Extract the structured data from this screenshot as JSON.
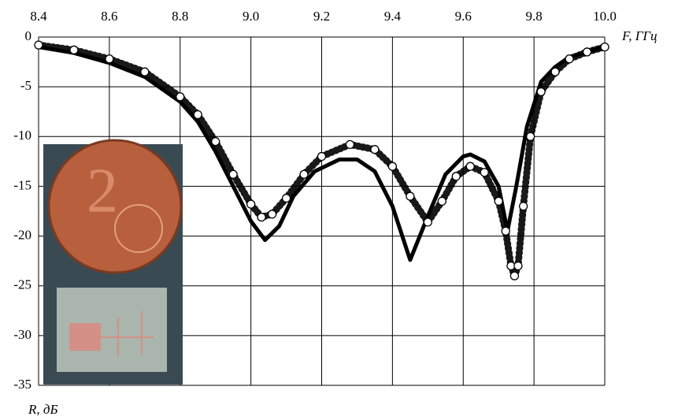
{
  "chart_data": {
    "type": "line",
    "x_label": "F, ГГц",
    "y_label": "R, дБ",
    "xlim": [
      8.4,
      10
    ],
    "xticks": [
      8.4,
      8.6,
      8.8,
      {
        "value": 9,
        "label": "9.0"
      },
      9.2,
      9.4,
      9.6,
      9.8,
      {
        "value": 10,
        "label": "10.0"
      }
    ],
    "ylim": [
      -35,
      0
    ],
    "yticks": [
      0,
      -5,
      -10,
      -15,
      -20,
      -25,
      -30,
      -35
    ],
    "grid": true,
    "series": [
      {
        "style": "line",
        "color": "#000000",
        "x": [
          8.4,
          8.5,
          8.6,
          8.7,
          8.8,
          8.85,
          8.9,
          8.95,
          9.0,
          9.04,
          9.08,
          9.12,
          9.18,
          9.25,
          9.3,
          9.35,
          9.4,
          9.45,
          9.5,
          9.55,
          9.6,
          9.62,
          9.66,
          9.7,
          9.725,
          9.75,
          9.78,
          9.82,
          9.86,
          9.9,
          10.0
        ],
        "values": [
          -1,
          -1.6,
          -2.6,
          -4,
          -6.5,
          -8.5,
          -11.5,
          -15,
          -18.5,
          -20.4,
          -19,
          -16,
          -13.5,
          -12.3,
          -12.3,
          -13.5,
          -17,
          -22.4,
          -18,
          -13.8,
          -12,
          -11.8,
          -12.5,
          -15,
          -19.5,
          -15,
          -9,
          -4.5,
          -3,
          -2,
          -1
        ]
      },
      {
        "style": "circles",
        "color": "#000000",
        "x": [
          8.4,
          8.5,
          8.6,
          8.7,
          8.8,
          8.85,
          8.9,
          8.95,
          9.0,
          9.03,
          9.06,
          9.1,
          9.15,
          9.2,
          9.28,
          9.35,
          9.4,
          9.45,
          9.5,
          9.54,
          9.58,
          9.62,
          9.66,
          9.7,
          9.72,
          9.735,
          9.745,
          9.755,
          9.77,
          9.79,
          9.82,
          9.86,
          9.9,
          9.95,
          10.0
        ],
        "values": [
          -0.8,
          -1.3,
          -2.2,
          -3.5,
          -6,
          -7.8,
          -10.5,
          -13.8,
          -16.8,
          -18.1,
          -17.8,
          -16.2,
          -13.8,
          -12,
          -10.8,
          -11.3,
          -13,
          -16,
          -18.6,
          -16.5,
          -14,
          -13,
          -13.6,
          -16.5,
          -19.5,
          -23,
          -24,
          -23,
          -17,
          -10,
          -5.5,
          -3.5,
          -2.2,
          -1.5,
          -1
        ]
      }
    ]
  }
}
